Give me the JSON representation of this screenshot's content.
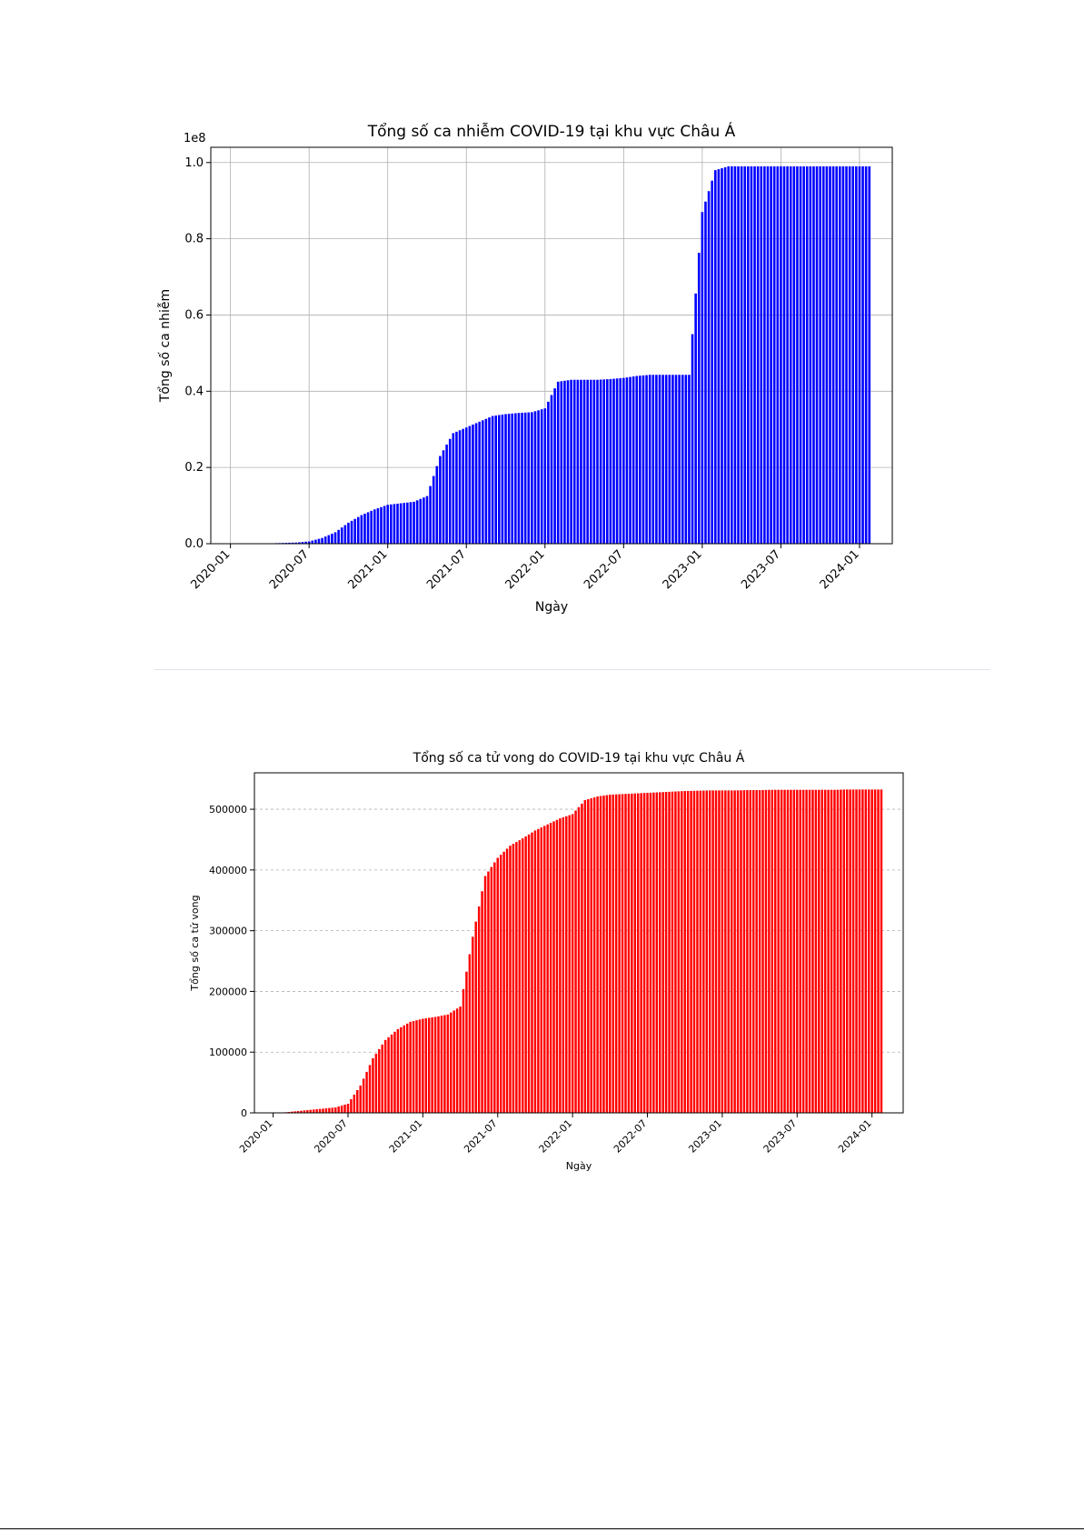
{
  "chart_data": [
    {
      "type": "bar",
      "title": "Tổng số ca nhiễm COVID-19 tại khu vực Châu Á",
      "xlabel": "Ngày",
      "ylabel": "Tổng số ca nhiễm",
      "y_multiplier_label": "1e8",
      "ylim": [
        0,
        1.04
      ],
      "y_ticks": [
        "0.0",
        "0.2",
        "0.4",
        "0.6",
        "0.8",
        "1.0"
      ],
      "x_ticks": [
        "2020-01",
        "2020-07",
        "2021-01",
        "2021-07",
        "2022-01",
        "2022-07",
        "2023-01",
        "2023-07",
        "2024-01"
      ],
      "grid": true,
      "color": "#0000ff",
      "series": [
        {
          "x": [
            "2020-01",
            "2020-02",
            "2020-03",
            "2020-04",
            "2020-05",
            "2020-06",
            "2020-07",
            "2020-08",
            "2020-09",
            "2020-10",
            "2020-11",
            "2020-12",
            "2021-01",
            "2021-02",
            "2021-03",
            "2021-04",
            "2021-05",
            "2021-06",
            "2021-07",
            "2021-08",
            "2021-09",
            "2021-10",
            "2021-11",
            "2021-12",
            "2022-01",
            "2022-02",
            "2022-03",
            "2022-04",
            "2022-05",
            "2022-06",
            "2022-07",
            "2022-08",
            "2022-09",
            "2022-10",
            "2022-11",
            "2022-12",
            "2023-01",
            "2023-02",
            "2023-03",
            "2023-04",
            "2023-05",
            "2023-06",
            "2023-07",
            "2023-08",
            "2023-09",
            "2023-10",
            "2023-11",
            "2023-12",
            "2024-01"
          ],
          "y": [
            0.0,
            0.001,
            0.001,
            0.001,
            0.002,
            0.003,
            0.006,
            0.015,
            0.03,
            0.055,
            0.075,
            0.09,
            0.102,
            0.106,
            0.11,
            0.125,
            0.23,
            0.29,
            0.305,
            0.32,
            0.335,
            0.34,
            0.343,
            0.345,
            0.355,
            0.425,
            0.43,
            0.43,
            0.43,
            0.432,
            0.435,
            0.44,
            0.443,
            0.443,
            0.443,
            0.443,
            0.87,
            0.98,
            0.99,
            0.99,
            0.99,
            0.99,
            0.99,
            0.99,
            0.99,
            0.99,
            0.99,
            0.99,
            0.99
          ]
        }
      ]
    },
    {
      "type": "bar",
      "title": "Tổng số ca tử vong do COVID-19 tại khu vực Châu Á",
      "xlabel": "Ngày",
      "ylabel": "Tổng số ca tử vong",
      "ylim": [
        0,
        560000
      ],
      "y_ticks": [
        "0",
        "100000",
        "200000",
        "300000",
        "400000",
        "500000"
      ],
      "x_ticks": [
        "2020-01",
        "2020-07",
        "2021-01",
        "2021-07",
        "2022-01",
        "2022-07",
        "2023-01",
        "2023-07",
        "2024-01"
      ],
      "grid": true,
      "color": "#ff0000",
      "series": [
        {
          "x": [
            "2020-01",
            "2020-02",
            "2020-03",
            "2020-04",
            "2020-05",
            "2020-06",
            "2020-07",
            "2020-08",
            "2020-09",
            "2020-10",
            "2020-11",
            "2020-12",
            "2021-01",
            "2021-02",
            "2021-03",
            "2021-04",
            "2021-05",
            "2021-06",
            "2021-07",
            "2021-08",
            "2021-09",
            "2021-10",
            "2021-11",
            "2021-12",
            "2022-01",
            "2022-02",
            "2022-03",
            "2022-04",
            "2022-05",
            "2022-06",
            "2022-07",
            "2022-08",
            "2022-09",
            "2022-10",
            "2022-11",
            "2022-12",
            "2023-01",
            "2023-02",
            "2023-03",
            "2023-04",
            "2023-05",
            "2023-06",
            "2023-07",
            "2023-08",
            "2023-09",
            "2023-10",
            "2023-11",
            "2023-12",
            "2024-01"
          ],
          "y": [
            0,
            1000,
            3000,
            5000,
            7000,
            9000,
            15000,
            45000,
            90000,
            120000,
            138000,
            150000,
            155000,
            158000,
            162000,
            175000,
            290000,
            390000,
            420000,
            440000,
            452000,
            465000,
            475000,
            485000,
            492000,
            515000,
            521000,
            524000,
            525000,
            526000,
            527000,
            528000,
            529000,
            530000,
            530500,
            531000,
            531000,
            531000,
            531500,
            531500,
            532000,
            532000,
            532000,
            532000,
            532000,
            532000,
            532500,
            532500,
            532500
          ]
        }
      ]
    }
  ]
}
